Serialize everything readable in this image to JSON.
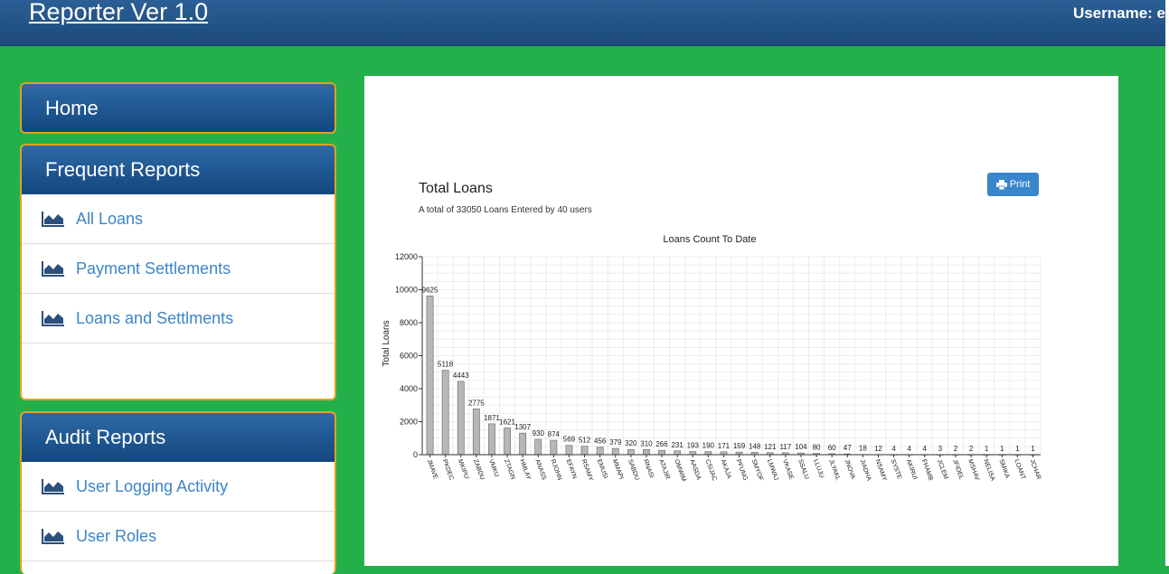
{
  "header": {
    "title": "Reporter Ver 1.0",
    "username_label": "Username: e"
  },
  "sidebar": {
    "home": {
      "label": "Home"
    },
    "frequent": {
      "title": "Frequent Reports",
      "items": [
        {
          "label": "All Loans",
          "icon": "chart-icon"
        },
        {
          "label": "Payment Settlements",
          "icon": "chart-icon"
        },
        {
          "label": "Loans and Settlments",
          "icon": "chart-icon"
        }
      ]
    },
    "audit": {
      "title": "Audit Reports",
      "items": [
        {
          "label": "User Logging Activity",
          "icon": "chart-icon"
        },
        {
          "label": "User Roles",
          "icon": "chart-icon"
        }
      ]
    }
  },
  "main": {
    "title": "Total Loans",
    "subtitle": "A total of 33050 Loans Entered by 40 users",
    "print_label": "Print"
  },
  "chart_data": {
    "type": "bar",
    "title": "Loans Count To Date",
    "xlabel": "",
    "ylabel": "Total Loans",
    "ylim": [
      0,
      12000
    ],
    "yticks": [
      0,
      2000,
      4000,
      6000,
      8000,
      10000,
      12000
    ],
    "grid": true,
    "categories": [
      "JMAVE",
      "PKDEC",
      "MKIPU'",
      "ZABDU",
      "VMKU",
      "ZTAGN",
      "HMLAY",
      "ANASS",
      "RJOHN",
      "EFAYN",
      "RSAMY",
      "EMUSI",
      "MMAPI",
      "SABDU",
      "RNASI",
      "ATAJIR",
      "OMWIM",
      "AASDA",
      "CSIJAC",
      "AKAJA",
      "PFUNG",
      "SMYOF",
      "LMWAJ",
      "VKASE",
      "SSALU",
      "LLUJU",
      "JLYAKL",
      "JNOVA",
      "JIADHA",
      "NSAMY",
      "SYSTE",
      "AKIRUI",
      "FHAMB",
      "JCLEM",
      "JFIDEL",
      "MSHAV",
      "NELISA",
      "SMIKA",
      "LOANT",
      "JCHAR"
    ],
    "values": [
      9625,
      5118,
      4443,
      2775,
      1871,
      1621,
      1307,
      930,
      874,
      569,
      512,
      456,
      379,
      320,
      310,
      266,
      231,
      193,
      190,
      171,
      159,
      148,
      121,
      117,
      104,
      80,
      60,
      47,
      18,
      12,
      4,
      4,
      4,
      3,
      2,
      2,
      1,
      1,
      1,
      1
    ],
    "bar_color": "#b7b7b7"
  }
}
